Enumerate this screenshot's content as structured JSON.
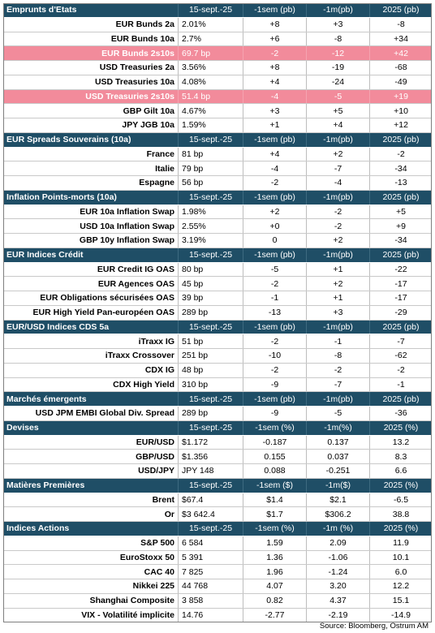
{
  "sections": [
    {
      "title": "Emprunts d'Etats",
      "columns": [
        "15-sept.-25",
        "-1sem (pb)",
        "-1m(pb)",
        "2025 (pb)"
      ],
      "rows": [
        {
          "label": "EUR Bunds 2a",
          "values": [
            "2.01%",
            "+8",
            "+3",
            "-8"
          ],
          "highlight": false
        },
        {
          "label": "EUR Bunds 10a",
          "values": [
            "2.7%",
            "+6",
            "-8",
            "+34"
          ],
          "highlight": false
        },
        {
          "label": "EUR Bunds 2s10s",
          "values": [
            "69.7 bp",
            "-2",
            "-12",
            "+42"
          ],
          "highlight": true
        },
        {
          "label": "USD Treasuries 2a",
          "values": [
            "3.56%",
            "+8",
            "-19",
            "-68"
          ],
          "highlight": false
        },
        {
          "label": "USD Treasuries 10a",
          "values": [
            "4.08%",
            "+4",
            "-24",
            "-49"
          ],
          "highlight": false
        },
        {
          "label": "USD Treasuries 2s10s",
          "values": [
            "51.4 bp",
            "-4",
            "-5",
            "+19"
          ],
          "highlight": true
        },
        {
          "label": "GBP Gilt 10a",
          "values": [
            "4.67%",
            "+3",
            "+5",
            "+10"
          ],
          "highlight": false
        },
        {
          "label": "JPY JGB  10a",
          "values": [
            "1.59%",
            "+1",
            "+4",
            "+12"
          ],
          "highlight": false
        }
      ]
    },
    {
      "title": "EUR Spreads Souverains (10a)",
      "columns": [
        "15-sept.-25",
        "-1sem (pb)",
        "-1m(pb)",
        "2025 (pb)"
      ],
      "rows": [
        {
          "label": "France",
          "values": [
            "81 bp",
            "+4",
            "+2",
            "-2"
          ],
          "highlight": false
        },
        {
          "label": "Italie",
          "values": [
            "79 bp",
            "-4",
            "-7",
            "-34"
          ],
          "highlight": false
        },
        {
          "label": "Espagne",
          "values": [
            "56 bp",
            "-2",
            "-4",
            "-13"
          ],
          "highlight": false
        }
      ]
    },
    {
      "title": "Inflation Points-morts (10a)",
      "columns": [
        "15-sept.-25",
        "-1sem (pb)",
        "-1m(pb)",
        "2025 (pb)"
      ],
      "rows": [
        {
          "label": "EUR 10a Inflation Swap",
          "values": [
            "1.98%",
            "+2",
            "-2",
            "+5"
          ],
          "highlight": false
        },
        {
          "label": "USD 10a Inflation Swap",
          "values": [
            "2.55%",
            "+0",
            "-2",
            "+9"
          ],
          "highlight": false
        },
        {
          "label": "GBP 10y Inflation Swap",
          "values": [
            "3.19%",
            "0",
            "+2",
            "-34"
          ],
          "highlight": false
        }
      ]
    },
    {
      "title": "EUR Indices Crédit",
      "columns": [
        "15-sept.-25",
        "-1sem (pb)",
        "-1m(pb)",
        "2025 (pb)"
      ],
      "rows": [
        {
          "label": "EUR Credit IG OAS",
          "values": [
            "80 bp",
            "-5",
            "+1",
            "-22"
          ],
          "highlight": false
        },
        {
          "label": "EUR Agences OAS",
          "values": [
            "45 bp",
            "-2",
            "+2",
            "-17"
          ],
          "highlight": false
        },
        {
          "label": "EUR Obligations sécurisées OAS",
          "values": [
            "39 bp",
            "-1",
            "+1",
            "-17"
          ],
          "highlight": false
        },
        {
          "label": "EUR High Yield Pan-européen OAS",
          "values": [
            "289 bp",
            "-13",
            "+3",
            "-29"
          ],
          "highlight": false
        }
      ]
    },
    {
      "title": "EUR/USD Indices CDS 5a",
      "columns": [
        "15-sept.-25",
        "-1sem (pb)",
        "-1m(pb)",
        "2025 (pb)"
      ],
      "rows": [
        {
          "label": "iTraxx IG",
          "values": [
            "51 bp",
            "-2",
            "-1",
            "-7"
          ],
          "highlight": false
        },
        {
          "label": "iTraxx Crossover",
          "values": [
            "251 bp",
            "-10",
            "-8",
            "-62"
          ],
          "highlight": false
        },
        {
          "label": "CDX IG",
          "values": [
            "48 bp",
            "-2",
            "-2",
            "-2"
          ],
          "highlight": false
        },
        {
          "label": "CDX High Yield",
          "values": [
            "310 bp",
            "-9",
            "-7",
            "-1"
          ],
          "highlight": false
        }
      ]
    },
    {
      "title": "Marchés émergents",
      "columns": [
        "15-sept.-25",
        "-1sem (pb)",
        "-1m(pb)",
        "2025 (pb)"
      ],
      "rows": [
        {
          "label": "USD JPM EMBI Global Div. Spread",
          "values": [
            "289 bp",
            "-9",
            "-5",
            "-36"
          ],
          "highlight": false
        }
      ]
    },
    {
      "title": "Devises",
      "columns": [
        "15-sept.-25",
        "-1sem (%)",
        "-1m(%)",
        "2025 (%)"
      ],
      "rows": [
        {
          "label": "EUR/USD",
          "values": [
            "$1.172",
            "-0.187",
            "0.137",
            "13.2"
          ],
          "highlight": false
        },
        {
          "label": "GBP/USD",
          "values": [
            "$1.356",
            "0.155",
            "0.037",
            "8.3"
          ],
          "highlight": false
        },
        {
          "label": "USD/JPY",
          "values": [
            "JPY 148",
            "0.088",
            "-0.251",
            "6.6"
          ],
          "highlight": false
        }
      ]
    },
    {
      "title": "Matières Premières",
      "columns": [
        "15-sept.-25",
        "-1sem ($)",
        "-1m($)",
        "2025 (%)"
      ],
      "rows": [
        {
          "label": "Brent",
          "values": [
            "$67.4",
            "$1.4",
            "$2.1",
            "-6.5"
          ],
          "highlight": false
        },
        {
          "label": "Or",
          "values": [
            "$3 642.4",
            "$1.7",
            "$306.2",
            "38.8"
          ],
          "highlight": false
        }
      ]
    },
    {
      "title": "Indices Actions",
      "columns": [
        "15-sept.-25",
        "-1sem (%)",
        "-1m (%)",
        "2025 (%)"
      ],
      "rows": [
        {
          "label": "S&P 500",
          "values": [
            "6 584",
            "1.59",
            "2.09",
            "11.9"
          ],
          "highlight": false
        },
        {
          "label": "EuroStoxx 50",
          "values": [
            "5 391",
            "1.36",
            "-1.06",
            "10.1"
          ],
          "highlight": false
        },
        {
          "label": "CAC 40",
          "values": [
            "7 825",
            "1.96",
            "-1.24",
            "6.0"
          ],
          "highlight": false
        },
        {
          "label": "Nikkei 225",
          "values": [
            "44 768",
            "4.07",
            "3.20",
            "12.2"
          ],
          "highlight": false
        },
        {
          "label": "Shanghai Composite",
          "values": [
            "3 858",
            "0.82",
            "4.37",
            "15.1"
          ],
          "highlight": false
        },
        {
          "label": "VIX - Volatilité implicite",
          "values": [
            "14.76",
            "-2.77",
            "-2.19",
            "-14.9"
          ],
          "highlight": false
        }
      ]
    }
  ],
  "source": "Source: Bloomberg, Ostrum AM"
}
